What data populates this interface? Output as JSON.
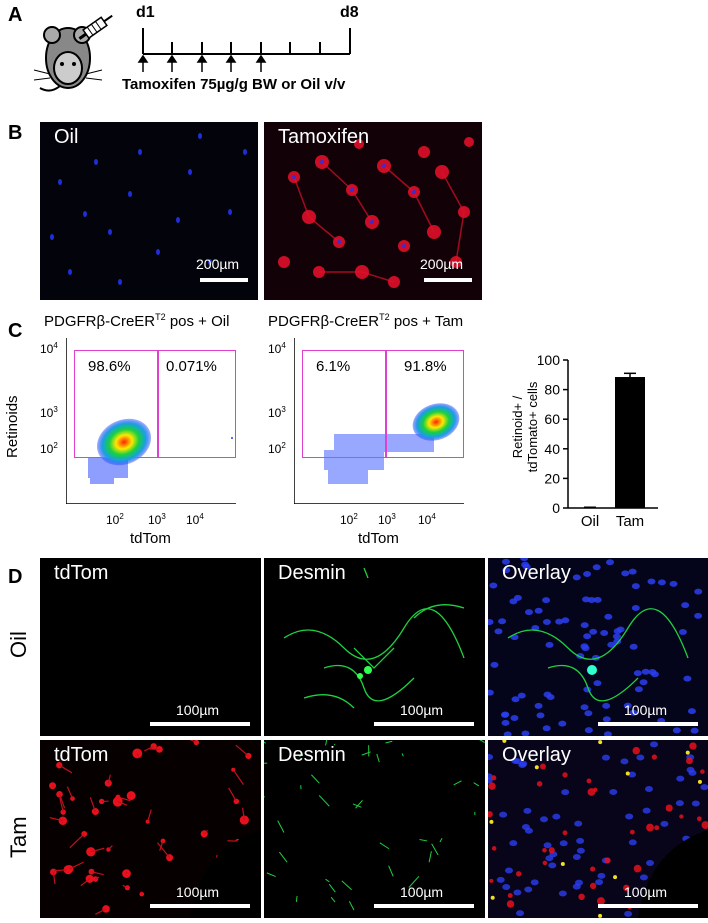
{
  "panelA": {
    "label": "A",
    "day_start": "d1",
    "day_end": "d8",
    "caption": "Tamoxifen 75µg/g BW or Oil v/v"
  },
  "panelB": {
    "label": "B",
    "oil_title": "Oil",
    "tam_title": "Tamoxifen",
    "scale_label": "200µm"
  },
  "panelC": {
    "label": "C",
    "oil_title": "PDGFRβ-CreER",
    "tam_title": "PDGFRβ-CreER",
    "title_sup": "T2",
    "oil_suffix": " pos + Oil",
    "tam_suffix": " pos + Tam",
    "flow_ylabel": "Retinoids",
    "flow_xlabel": "tdTom",
    "y_ticks": [
      "10",
      "10",
      "10"
    ],
    "y_tick_exps": [
      "4",
      "3",
      "2"
    ],
    "x_ticks": [
      "10",
      "10",
      "10"
    ],
    "x_tick_exps": [
      "2",
      "3",
      "4"
    ],
    "oil_left_pct": "98.6%",
    "oil_right_pct": "0.071%",
    "tam_left_pct": "6.1%",
    "tam_right_pct": "91.8%",
    "colors": {
      "gate": "#e040d0",
      "bar": "#000000"
    }
  },
  "chart_data": {
    "type": "bar",
    "categories": [
      "Oil",
      "Tam"
    ],
    "values": [
      0.3,
      88.5
    ],
    "errors": [
      0.2,
      2.5
    ],
    "ylabel_line1": "Retinoid+ /",
    "ylabel_line2": "tdTomato+ cells",
    "ylim": [
      0,
      100
    ],
    "yticks": [
      0,
      20,
      40,
      60,
      80,
      100
    ]
  },
  "panelD": {
    "label": "D",
    "row_oil": "Oil",
    "row_tam": "Tam",
    "col_titles": [
      "tdTom",
      "Desmin",
      "Overlay"
    ],
    "scale_label": "100µm"
  }
}
